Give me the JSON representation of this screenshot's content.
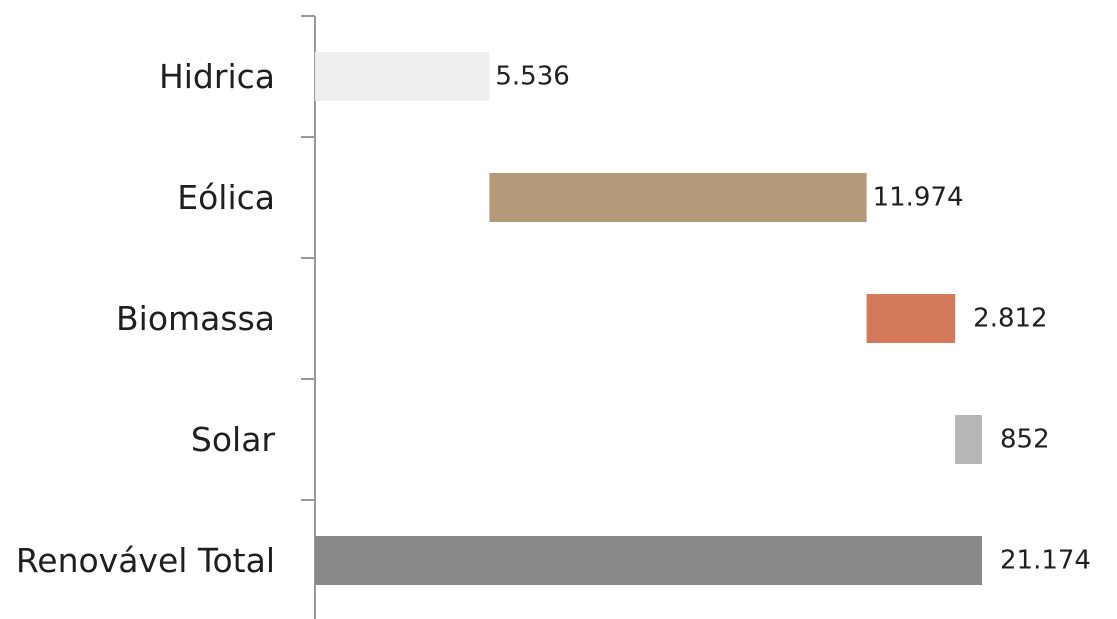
{
  "chart_data": {
    "type": "bar",
    "orientation": "horizontal",
    "variant": "waterfall",
    "categories": [
      "Hidrica",
      "Eólica",
      "Biomassa",
      "Solar",
      "Renovável Total"
    ],
    "values": [
      5536,
      11974,
      2812,
      852,
      21174
    ],
    "value_labels": [
      "5.536",
      "11.974",
      "2.812",
      "852",
      "21.174"
    ],
    "colors": [
      "#efeeee",
      "#b39977",
      "#d4795a",
      "#b7b7b7",
      "#878887"
    ],
    "xlim": [
      0,
      21174
    ],
    "grid": false,
    "legend": "none",
    "title": "",
    "xlabel": "",
    "ylabel": ""
  }
}
